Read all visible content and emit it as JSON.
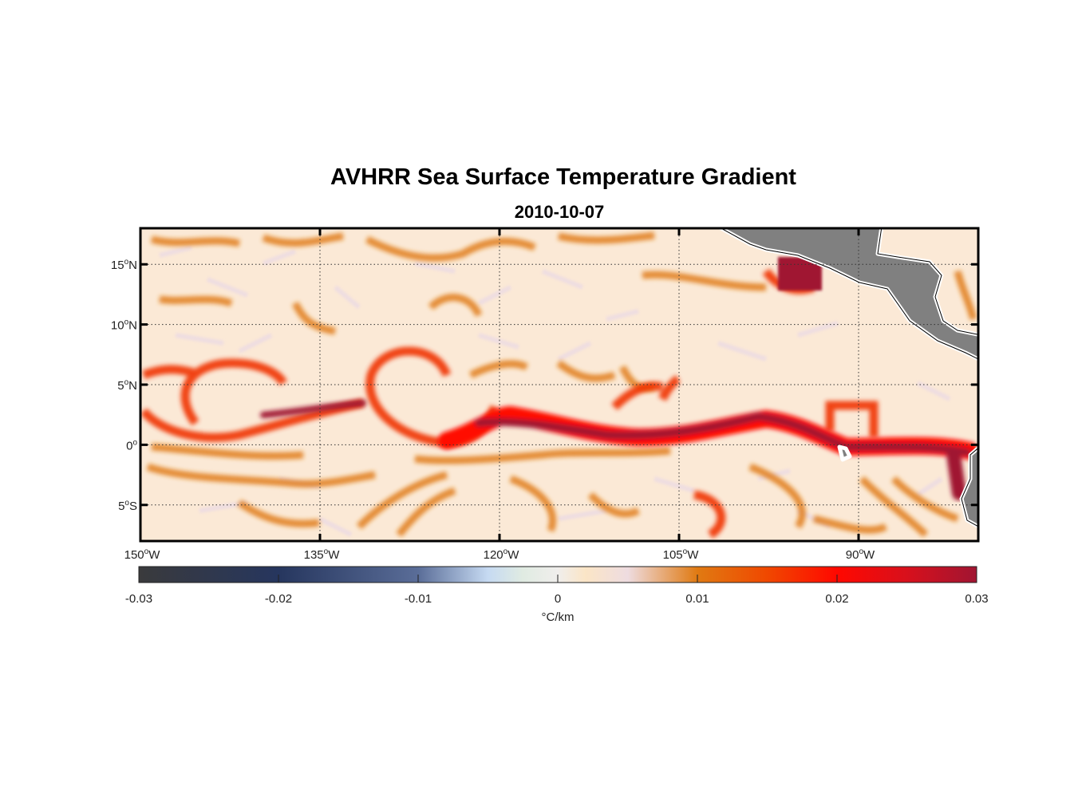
{
  "chart_data": {
    "type": "heatmap",
    "title": "AVHRR Sea Surface Temperature Gradient",
    "subtitle": "2010-10-07",
    "lon_range": [
      -150,
      -80
    ],
    "lat_range": [
      -8,
      18
    ],
    "lon_ticks": [
      {
        "value": -150,
        "label": "150°W"
      },
      {
        "value": -135,
        "label": "135°W"
      },
      {
        "value": -120,
        "label": "120°W"
      },
      {
        "value": -105,
        "label": "105°W"
      },
      {
        "value": -90,
        "label": "90°W"
      }
    ],
    "lat_ticks": [
      {
        "value": 15,
        "label": "15°N"
      },
      {
        "value": 10,
        "label": "10°N"
      },
      {
        "value": 5,
        "label": "5°N"
      },
      {
        "value": 0,
        "label": "0°"
      },
      {
        "value": -5,
        "label": "5°S"
      }
    ],
    "grid": true,
    "colorbar": {
      "label": "°C/km",
      "range": [
        -0.03,
        0.03
      ],
      "ticks": [
        {
          "value": -0.03,
          "label": "-0.03"
        },
        {
          "value": -0.02,
          "label": "-0.02"
        },
        {
          "value": -0.01,
          "label": "-0.01"
        },
        {
          "value": 0,
          "label": "0"
        },
        {
          "value": 0.01,
          "label": "0.01"
        },
        {
          "value": 0.02,
          "label": "0.02"
        },
        {
          "value": 0.03,
          "label": "0.03"
        }
      ],
      "stops": [
        {
          "value": -0.03,
          "color": "#3a3a3c"
        },
        {
          "value": -0.02,
          "color": "#26365e"
        },
        {
          "value": -0.01,
          "color": "#5a6d98"
        },
        {
          "value": -0.005,
          "color": "#c6daf2"
        },
        {
          "value": -0.0025,
          "color": "#e0ebe2"
        },
        {
          "value": 0,
          "color": "#f0eeec"
        },
        {
          "value": 0.002,
          "color": "#fbe5c6"
        },
        {
          "value": 0.005,
          "color": "#eedce0"
        },
        {
          "value": 0.01,
          "color": "#e07a12"
        },
        {
          "value": 0.015,
          "color": "#f04800"
        },
        {
          "value": 0.02,
          "color": "#ff0800"
        },
        {
          "value": 0.025,
          "color": "#d8101c"
        },
        {
          "value": 0.03,
          "color": "#a01532"
        }
      ]
    },
    "land_color": "#808080",
    "background_color": "#fbe9d6"
  }
}
